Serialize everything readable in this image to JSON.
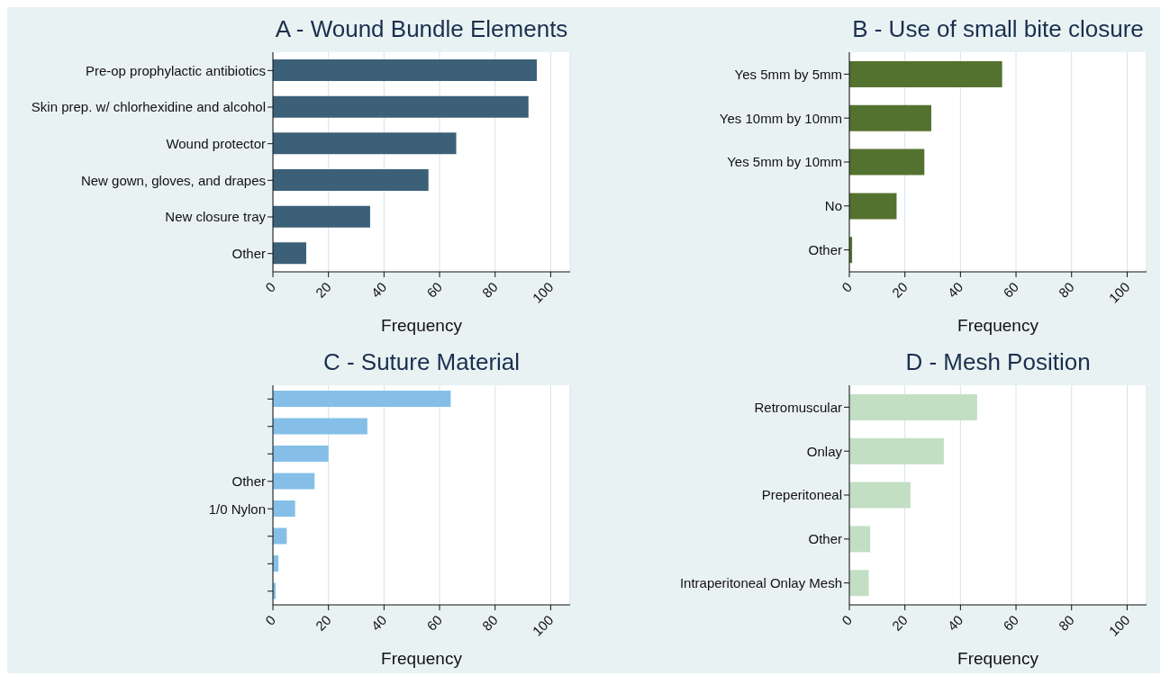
{
  "chart_data": [
    {
      "type": "bar",
      "orientation": "horizontal",
      "title": "A - Wound Bundle Elements",
      "xlabel": "Frequency",
      "categories": [
        "Pre-op prophylactic antibiotics",
        "Skin prep. w/ chlorhexidine and alcohol",
        "Wound protector",
        "New gown, gloves, and drapes",
        "New closure tray",
        "Other"
      ],
      "values": [
        95,
        92,
        66,
        56,
        35,
        12
      ],
      "color": "#3d6079",
      "xlim": [
        0,
        107
      ],
      "xticks": [
        0,
        20,
        40,
        60,
        80,
        100
      ],
      "grid": "x"
    },
    {
      "type": "bar",
      "orientation": "horizontal",
      "title": "B - Use of small bite closure",
      "xlabel": "Frequency",
      "categories": [
        "Yes 5mm by 5mm",
        "Yes 10mm by 10mm",
        "Yes 5mm by 10mm",
        "No",
        "Other"
      ],
      "values": [
        55,
        29.5,
        27,
        17,
        1
      ],
      "color": "#54722f",
      "xlim": [
        0,
        107
      ],
      "xticks": [
        0,
        20,
        40,
        60,
        80,
        100
      ],
      "grid": "x"
    },
    {
      "type": "bar",
      "orientation": "horizontal",
      "title": "C - Suture Material",
      "xlabel": "Frequency",
      "categories": [
        null,
        null,
        null,
        "Other",
        "1/0 Nylon",
        null,
        null,
        null
      ],
      "values": [
        64,
        34,
        20,
        15,
        8,
        5,
        2,
        1
      ],
      "color": "#85bfe8",
      "xlim": [
        0,
        107
      ],
      "xticks": [
        0,
        20,
        40,
        60,
        80,
        100
      ],
      "grid": "x"
    },
    {
      "type": "bar",
      "orientation": "horizontal",
      "title": "D - Mesh Position",
      "xlabel": "Frequency",
      "categories": [
        "Retromuscular",
        "Onlay",
        "Preperitoneal",
        "Other",
        "Intraperitoneal Onlay Mesh"
      ],
      "values": [
        46,
        34,
        22,
        7.5,
        7
      ],
      "color": "#c2dfc4",
      "xlim": [
        0,
        107
      ],
      "xticks": [
        0,
        20,
        40,
        60,
        80,
        100
      ],
      "grid": "x"
    }
  ]
}
